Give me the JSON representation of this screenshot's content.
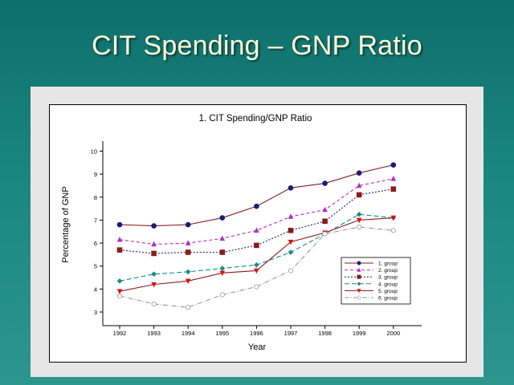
{
  "slide": {
    "title": "CIT Spending – GNP Ratio"
  },
  "colors": {
    "background_top": "#0e6f6c",
    "background_bottom": "#2c968e",
    "title_text": "#fffbd6",
    "panel": "#e6e6e6"
  },
  "chart_data": {
    "type": "line",
    "title": "1.   CIT Spending/GNP Ratio",
    "xlabel": "Year",
    "ylabel": "Percentage of GNP",
    "x": [
      "1992",
      "1993",
      "1994",
      "1995",
      "1996",
      "1997",
      "1998",
      "1999",
      "2000"
    ],
    "ylim": [
      2.5,
      10.5
    ],
    "yticks": [
      "3",
      "4",
      "5",
      "6",
      "7",
      "8",
      "9",
      "10"
    ],
    "grid": false,
    "legend_position": "bottom-right",
    "series": [
      {
        "name": "1. group",
        "values": [
          6.8,
          6.75,
          6.8,
          7.1,
          7.6,
          8.4,
          8.6,
          9.05,
          9.4
        ],
        "color": "#8b1a1a",
        "marker_color": "#1a1a80",
        "marker": "circle",
        "dash": ""
      },
      {
        "name": "2. group",
        "values": [
          6.15,
          5.95,
          6.0,
          6.2,
          6.55,
          7.15,
          7.45,
          8.5,
          8.8
        ],
        "color": "#b030c0",
        "marker_color": "#b030c0",
        "marker": "triangle",
        "dash": "4,3"
      },
      {
        "name": "3. group",
        "values": [
          5.7,
          5.55,
          5.6,
          5.6,
          5.9,
          6.55,
          6.95,
          8.1,
          8.35
        ],
        "color": "#1a1a80",
        "marker_color": "#8b1a1a",
        "marker": "square",
        "dash": "2,2"
      },
      {
        "name": "4. group",
        "values": [
          4.35,
          4.65,
          4.75,
          4.9,
          5.05,
          5.6,
          6.4,
          7.25,
          7.1
        ],
        "color": "#1a8a8a",
        "marker_color": "#1a8a8a",
        "marker": "diamond",
        "dash": "6,3"
      },
      {
        "name": "5. group",
        "values": [
          3.9,
          4.2,
          4.35,
          4.7,
          4.8,
          6.05,
          6.45,
          7.0,
          7.1
        ],
        "color": "#8b1a1a",
        "marker_color": "#e01010",
        "marker": "triangle-down",
        "dash": ""
      },
      {
        "name": "6. group",
        "values": [
          3.7,
          3.35,
          3.2,
          3.75,
          4.1,
          4.8,
          6.4,
          6.7,
          6.55
        ],
        "color": "#999999",
        "marker_color": "#ffffff",
        "marker": "circle-open",
        "dash": "6,2,1,2"
      }
    ]
  }
}
